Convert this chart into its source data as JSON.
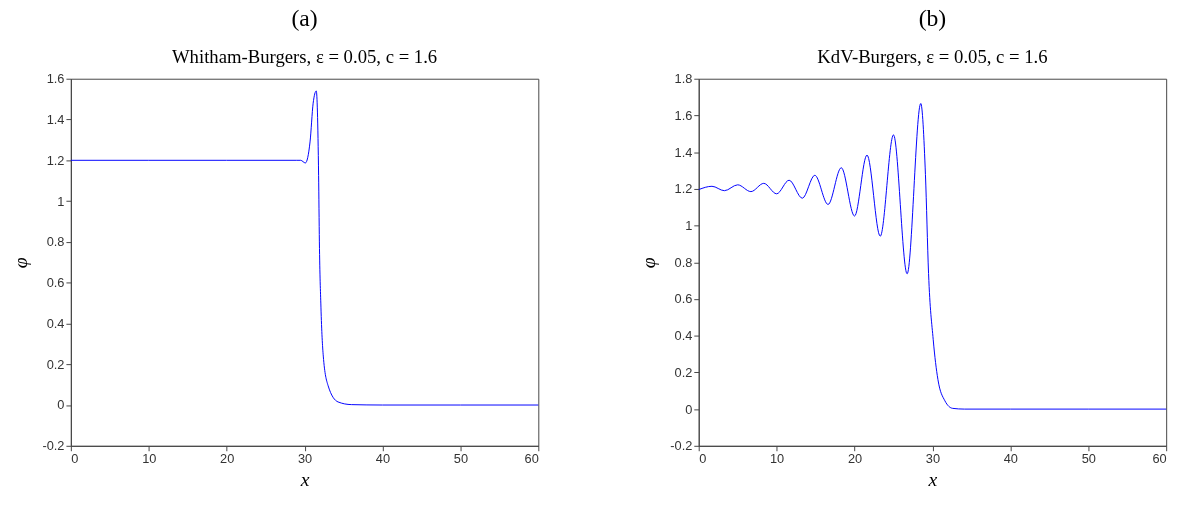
{
  "chart_data": [
    {
      "type": "line",
      "title": "(a)",
      "subtitle": "Whitham-Burgers, ε = 0.05, c = 1.6",
      "xlabel": "x",
      "ylabel": "φ",
      "xlim": [
        0,
        60
      ],
      "ylim": [
        -0.2,
        1.6
      ],
      "xticks": [
        0,
        10,
        20,
        30,
        40,
        50,
        60
      ],
      "yticks": [
        -0.2,
        0,
        0.2,
        0.4,
        0.6,
        0.8,
        1,
        1.2,
        1.4,
        1.6
      ],
      "grid": false,
      "series": [
        {
          "color": "#0000ff",
          "x": [
            0,
            10,
            20,
            29,
            29.5,
            30.1,
            30.7,
            31.1,
            31.5,
            31.8,
            31.9,
            32.1,
            32.4,
            33.0,
            34.3,
            36,
            40,
            50,
            60
          ],
          "values": [
            1.2,
            1.2,
            1.2,
            1.2,
            1.2,
            1.187,
            1.29,
            1.48,
            1.54,
            1.126,
            0.8,
            0.48,
            0.24,
            0.097,
            0.015,
            0.002,
            0,
            0,
            0
          ]
        }
      ]
    },
    {
      "type": "line",
      "title": "(b)",
      "subtitle": "KdV-Burgers, ε = 0.05, c = 1.6",
      "xlabel": "x",
      "ylabel": "φ",
      "xlim": [
        0,
        60
      ],
      "ylim": [
        -0.2,
        1.8
      ],
      "xticks": [
        0,
        10,
        20,
        30,
        40,
        50,
        60
      ],
      "yticks": [
        -0.2,
        0,
        0.2,
        0.4,
        0.6,
        0.8,
        1,
        1.2,
        1.4,
        1.6,
        1.8
      ],
      "grid": false,
      "series": [
        {
          "color": "#0000ff",
          "x": [
            0,
            1.7,
            3.3,
            5.0,
            6.7,
            8.35,
            10.0,
            11.6,
            13.3,
            14.9,
            16.6,
            18.3,
            20.0,
            21.6,
            23.3,
            25.0,
            26.75,
            28.5,
            29.1,
            29.5,
            30.1,
            30.7,
            31.6,
            32.6,
            34.1,
            40,
            50,
            60
          ],
          "values": [
            1.196,
            1.214,
            1.19,
            1.222,
            1.185,
            1.23,
            1.173,
            1.247,
            1.149,
            1.274,
            1.115,
            1.315,
            1.052,
            1.384,
            0.942,
            1.494,
            0.737,
            1.665,
            1.279,
            0.739,
            0.378,
            0.162,
            0.045,
            0.004,
            0,
            0,
            0,
            0
          ]
        }
      ]
    }
  ]
}
